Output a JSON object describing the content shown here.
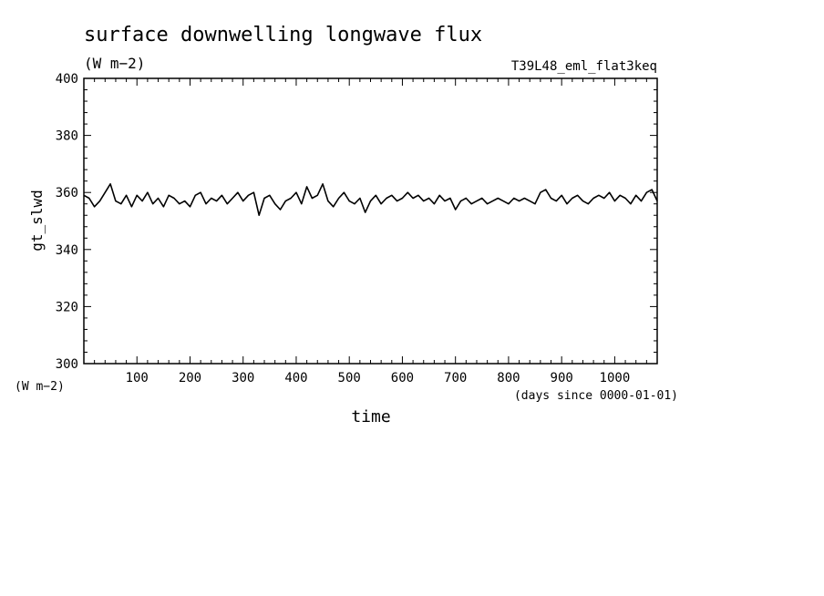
{
  "chart_data": {
    "type": "line",
    "title": "surface downwelling longwave flux",
    "subtitle": "(W m−2)",
    "experiment": "T39L48_eml_flat3keq",
    "xlabel": "time",
    "xunits": "(days since 0000-01-01)",
    "ylabel": "gt_slwd",
    "yunits": "(W m−2)",
    "xlim": [
      0,
      1080
    ],
    "ylim": [
      300,
      400
    ],
    "xticks": [
      100,
      200,
      300,
      400,
      500,
      600,
      700,
      800,
      900,
      1000
    ],
    "yticks": [
      300,
      320,
      340,
      360,
      380,
      400
    ],
    "grid": false,
    "series": [
      {
        "x": [
          0,
          10,
          20,
          30,
          40,
          50,
          60,
          70,
          80,
          90,
          100,
          110,
          120,
          130,
          140,
          150,
          160,
          170,
          180,
          190,
          200,
          210,
          220,
          230,
          240,
          250,
          260,
          270,
          280,
          290,
          300,
          310,
          320,
          330,
          340,
          350,
          360,
          370,
          380,
          390,
          400,
          410,
          420,
          430,
          440,
          450,
          460,
          470,
          480,
          490,
          500,
          510,
          520,
          530,
          540,
          550,
          560,
          570,
          580,
          590,
          600,
          610,
          620,
          630,
          640,
          650,
          660,
          670,
          680,
          690,
          700,
          710,
          720,
          730,
          740,
          750,
          760,
          770,
          780,
          790,
          800,
          810,
          820,
          830,
          840,
          850,
          860,
          870,
          880,
          890,
          900,
          910,
          920,
          930,
          940,
          950,
          960,
          970,
          980,
          990,
          1000,
          1010,
          1020,
          1030,
          1040,
          1050,
          1060,
          1070,
          1080
        ],
        "y": [
          359,
          358,
          355,
          357,
          360,
          363,
          357,
          356,
          359,
          355,
          359,
          357,
          360,
          356,
          358,
          355,
          359,
          358,
          356,
          357,
          355,
          359,
          360,
          356,
          358,
          357,
          359,
          356,
          358,
          360,
          357,
          359,
          360,
          352,
          358,
          359,
          356,
          354,
          357,
          358,
          360,
          356,
          362,
          358,
          359,
          363,
          357,
          355,
          358,
          360,
          357,
          356,
          358,
          353,
          357,
          359,
          356,
          358,
          359,
          357,
          358,
          360,
          358,
          359,
          357,
          358,
          356,
          359,
          357,
          358,
          354,
          357,
          358,
          356,
          357,
          358,
          356,
          357,
          358,
          357,
          356,
          358,
          357,
          358,
          357,
          356,
          360,
          361,
          358,
          357,
          359,
          356,
          358,
          359,
          357,
          356,
          358,
          359,
          358,
          360,
          357,
          359,
          358,
          356,
          359,
          357,
          360,
          361,
          357
        ]
      }
    ]
  }
}
